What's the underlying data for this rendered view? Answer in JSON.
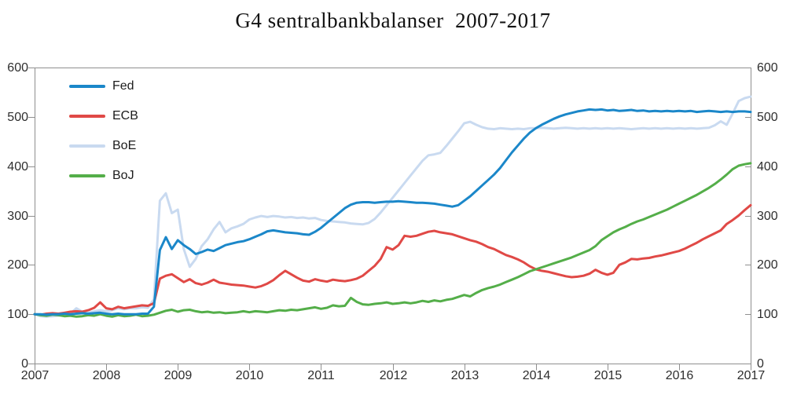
{
  "page": {
    "background": "#ffffff"
  },
  "chart_data": {
    "type": "line",
    "title": "G4 sentralbankbalanser  2007-2017",
    "subtitle": "",
    "xlabel": "",
    "ylabel": "",
    "x_unit": "monthly, Jan 2007 - Jan 2017 (index, 2007 = 100)",
    "x_tick_labels": [
      "2007",
      "2008",
      "2009",
      "2010",
      "2011",
      "2012",
      "2013",
      "2014",
      "2015",
      "2016",
      "2017"
    ],
    "y_ticks": [
      0,
      100,
      200,
      300,
      400,
      500,
      600
    ],
    "ylim": [
      0,
      600
    ],
    "grid": false,
    "legend_position": "top-left",
    "axis_color": "#8f8f8f",
    "label_color": "#2e2e2e",
    "series": [
      {
        "name": "Fed",
        "color": "#1b87c9",
        "values": [
          100,
          100,
          99,
          100,
          100,
          101,
          100,
          101,
          102,
          101,
          102,
          103,
          101,
          100,
          101,
          100,
          100,
          100,
          101,
          101,
          115,
          230,
          256,
          232,
          250,
          240,
          232,
          222,
          226,
          231,
          228,
          234,
          240,
          243,
          246,
          248,
          252,
          257,
          262,
          268,
          270,
          268,
          266,
          265,
          264,
          262,
          261,
          267,
          275,
          285,
          295,
          305,
          315,
          322,
          326,
          327,
          327,
          326,
          327,
          328,
          328,
          329,
          328,
          327,
          326,
          326,
          325,
          324,
          322,
          320,
          318,
          321,
          330,
          339,
          350,
          361,
          372,
          383,
          396,
          412,
          428,
          442,
          456,
          468,
          477,
          484,
          490,
          496,
          501,
          505,
          508,
          511,
          513,
          515,
          514,
          515,
          513,
          514,
          512,
          513,
          514,
          512,
          513,
          511,
          512,
          511,
          512,
          511,
          512,
          511,
          512,
          510,
          511,
          512,
          511,
          510,
          511,
          510,
          511,
          511,
          510
        ]
      },
      {
        "name": "ECB",
        "color": "#e04946",
        "values": [
          100,
          99,
          101,
          102,
          101,
          103,
          105,
          106,
          105,
          108,
          113,
          124,
          112,
          110,
          115,
          112,
          114,
          116,
          118,
          117,
          122,
          172,
          178,
          181,
          173,
          165,
          171,
          163,
          160,
          164,
          170,
          164,
          162,
          160,
          159,
          158,
          156,
          154,
          157,
          162,
          169,
          179,
          188,
          181,
          174,
          168,
          166,
          171,
          168,
          166,
          170,
          168,
          167,
          169,
          172,
          178,
          188,
          198,
          212,
          236,
          231,
          240,
          259,
          257,
          259,
          263,
          267,
          269,
          266,
          264,
          262,
          258,
          254,
          250,
          247,
          242,
          236,
          232,
          226,
          220,
          216,
          211,
          205,
          197,
          191,
          188,
          186,
          183,
          180,
          177,
          175,
          176,
          178,
          182,
          190,
          184,
          180,
          184,
          200,
          205,
          212,
          211,
          213,
          214,
          217,
          219,
          222,
          225,
          228,
          233,
          239,
          245,
          252,
          258,
          264,
          270,
          283,
          291,
          300,
          311,
          321
        ]
      },
      {
        "name": "BoE",
        "color": "#c9daf0",
        "values": [
          100,
          96,
          95,
          96,
          97,
          99,
          101,
          112,
          105,
          103,
          106,
          108,
          106,
          108,
          112,
          110,
          112,
          112,
          114,
          113,
          130,
          330,
          345,
          305,
          312,
          232,
          196,
          212,
          238,
          252,
          272,
          287,
          266,
          274,
          278,
          283,
          292,
          296,
          299,
          297,
          299,
          298,
          296,
          297,
          295,
          296,
          294,
          295,
          291,
          289,
          288,
          287,
          286,
          284,
          283,
          282,
          285,
          293,
          306,
          321,
          336,
          351,
          366,
          381,
          396,
          411,
          422,
          424,
          427,
          441,
          456,
          471,
          487,
          490,
          484,
          479,
          476,
          475,
          477,
          476,
          475,
          476,
          475,
          477,
          477,
          478,
          477,
          476,
          477,
          478,
          477,
          476,
          477,
          476,
          477,
          476,
          477,
          476,
          477,
          476,
          475,
          476,
          477,
          476,
          477,
          476,
          477,
          476,
          477,
          476,
          477,
          476,
          477,
          478,
          483,
          491,
          484,
          507,
          532,
          538,
          541
        ]
      },
      {
        "name": "BoJ",
        "color": "#54ae49",
        "values": [
          100,
          98,
          97,
          99,
          98,
          96,
          97,
          95,
          96,
          98,
          97,
          100,
          97,
          95,
          98,
          96,
          97,
          99,
          96,
          97,
          99,
          103,
          107,
          109,
          105,
          108,
          109,
          106,
          104,
          105,
          103,
          104,
          102,
          103,
          104,
          106,
          104,
          106,
          105,
          104,
          106,
          108,
          107,
          109,
          108,
          110,
          112,
          114,
          111,
          113,
          118,
          116,
          117,
          133,
          125,
          120,
          119,
          121,
          122,
          124,
          121,
          122,
          124,
          122,
          124,
          127,
          125,
          128,
          126,
          129,
          131,
          135,
          139,
          136,
          143,
          149,
          153,
          156,
          160,
          165,
          170,
          175,
          181,
          187,
          191,
          195,
          199,
          203,
          207,
          211,
          215,
          220,
          225,
          230,
          238,
          250,
          258,
          266,
          272,
          277,
          283,
          288,
          292,
          297,
          302,
          307,
          312,
          318,
          324,
          330,
          336,
          342,
          349,
          356,
          364,
          373,
          383,
          394,
          401,
          404,
          406
        ]
      }
    ]
  }
}
